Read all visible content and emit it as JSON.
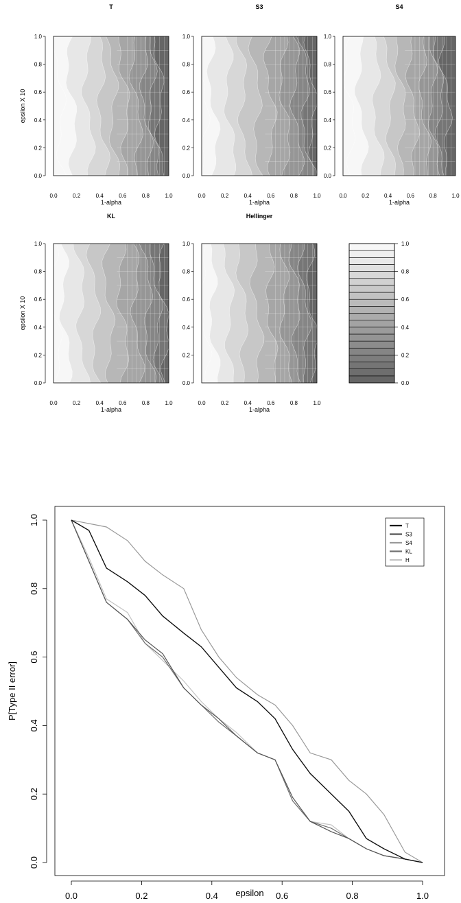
{
  "chart_data": [
    {
      "type": "heatmap",
      "panels": [
        {
          "title": "T"
        },
        {
          "title": "S3"
        },
        {
          "title": "S4"
        },
        {
          "title": "KL"
        },
        {
          "title": "Hellinger"
        }
      ],
      "xlabel": "1-alpha",
      "ylabel": "epsilon X 10",
      "xlim": [
        0,
        1
      ],
      "ylim": [
        0,
        1
      ],
      "x_ticks": [
        "0.0",
        "0.2",
        "0.4",
        "0.6",
        "0.8",
        "1.0"
      ],
      "y_ticks": [
        "0.0",
        "0.2",
        "0.4",
        "0.6",
        "0.8",
        "1.0"
      ],
      "colorbar": {
        "ticks": [
          "0.0",
          "0.2",
          "0.4",
          "0.6",
          "0.8",
          "1.0"
        ],
        "range": [
          0,
          1
        ],
        "levels": 20,
        "palette": "grey, dark (0) to light (1)"
      }
    },
    {
      "type": "line",
      "xlabel": "epsilon",
      "ylabel": "P[Type II error]",
      "xlim": [
        0,
        1
      ],
      "ylim": [
        0,
        1
      ],
      "x_ticks": [
        "0.0",
        "0.2",
        "0.4",
        "0.6",
        "0.8",
        "1.0"
      ],
      "y_ticks": [
        "0.0",
        "0.2",
        "0.4",
        "0.6",
        "0.8",
        "1.0"
      ],
      "legend_position": "top-right",
      "x": [
        0.0,
        0.05,
        0.1,
        0.16,
        0.21,
        0.26,
        0.32,
        0.37,
        0.42,
        0.47,
        0.53,
        0.58,
        0.63,
        0.68,
        0.74,
        0.79,
        0.84,
        0.89,
        0.95,
        1.0
      ],
      "series": [
        {
          "name": "T",
          "color": "#111111",
          "values": [
            1.0,
            0.97,
            0.86,
            0.82,
            0.78,
            0.72,
            0.67,
            0.63,
            0.57,
            0.51,
            0.47,
            0.42,
            0.33,
            0.26,
            0.2,
            0.15,
            0.07,
            0.04,
            0.01,
            0.0
          ]
        },
        {
          "name": "S3",
          "color": "#555555",
          "values": [
            1.0,
            0.88,
            0.76,
            0.71,
            0.65,
            0.61,
            0.51,
            0.46,
            0.42,
            0.37,
            0.32,
            0.3,
            0.19,
            0.12,
            0.09,
            0.07,
            0.04,
            0.02,
            0.01,
            0.0
          ]
        },
        {
          "name": "S4",
          "color": "#9a9a9a",
          "values": [
            1.0,
            0.99,
            0.98,
            0.94,
            0.88,
            0.84,
            0.8,
            0.68,
            0.6,
            0.54,
            0.49,
            0.46,
            0.4,
            0.32,
            0.3,
            0.24,
            0.2,
            0.14,
            0.03,
            0.0
          ]
        },
        {
          "name": "KL",
          "color": "#707070",
          "values": [
            1.0,
            0.88,
            0.76,
            0.71,
            0.64,
            0.6,
            0.51,
            0.46,
            0.41,
            0.37,
            0.32,
            0.3,
            0.18,
            0.12,
            0.1,
            0.07,
            0.04,
            0.02,
            0.01,
            0.0
          ]
        },
        {
          "name": "H",
          "color": "#c4c4c4",
          "values": [
            1.0,
            0.89,
            0.77,
            0.73,
            0.64,
            0.59,
            0.53,
            0.47,
            0.42,
            0.38,
            0.32,
            0.3,
            0.18,
            0.12,
            0.11,
            0.07,
            0.04,
            0.02,
            0.01,
            0.0
          ]
        }
      ]
    }
  ]
}
